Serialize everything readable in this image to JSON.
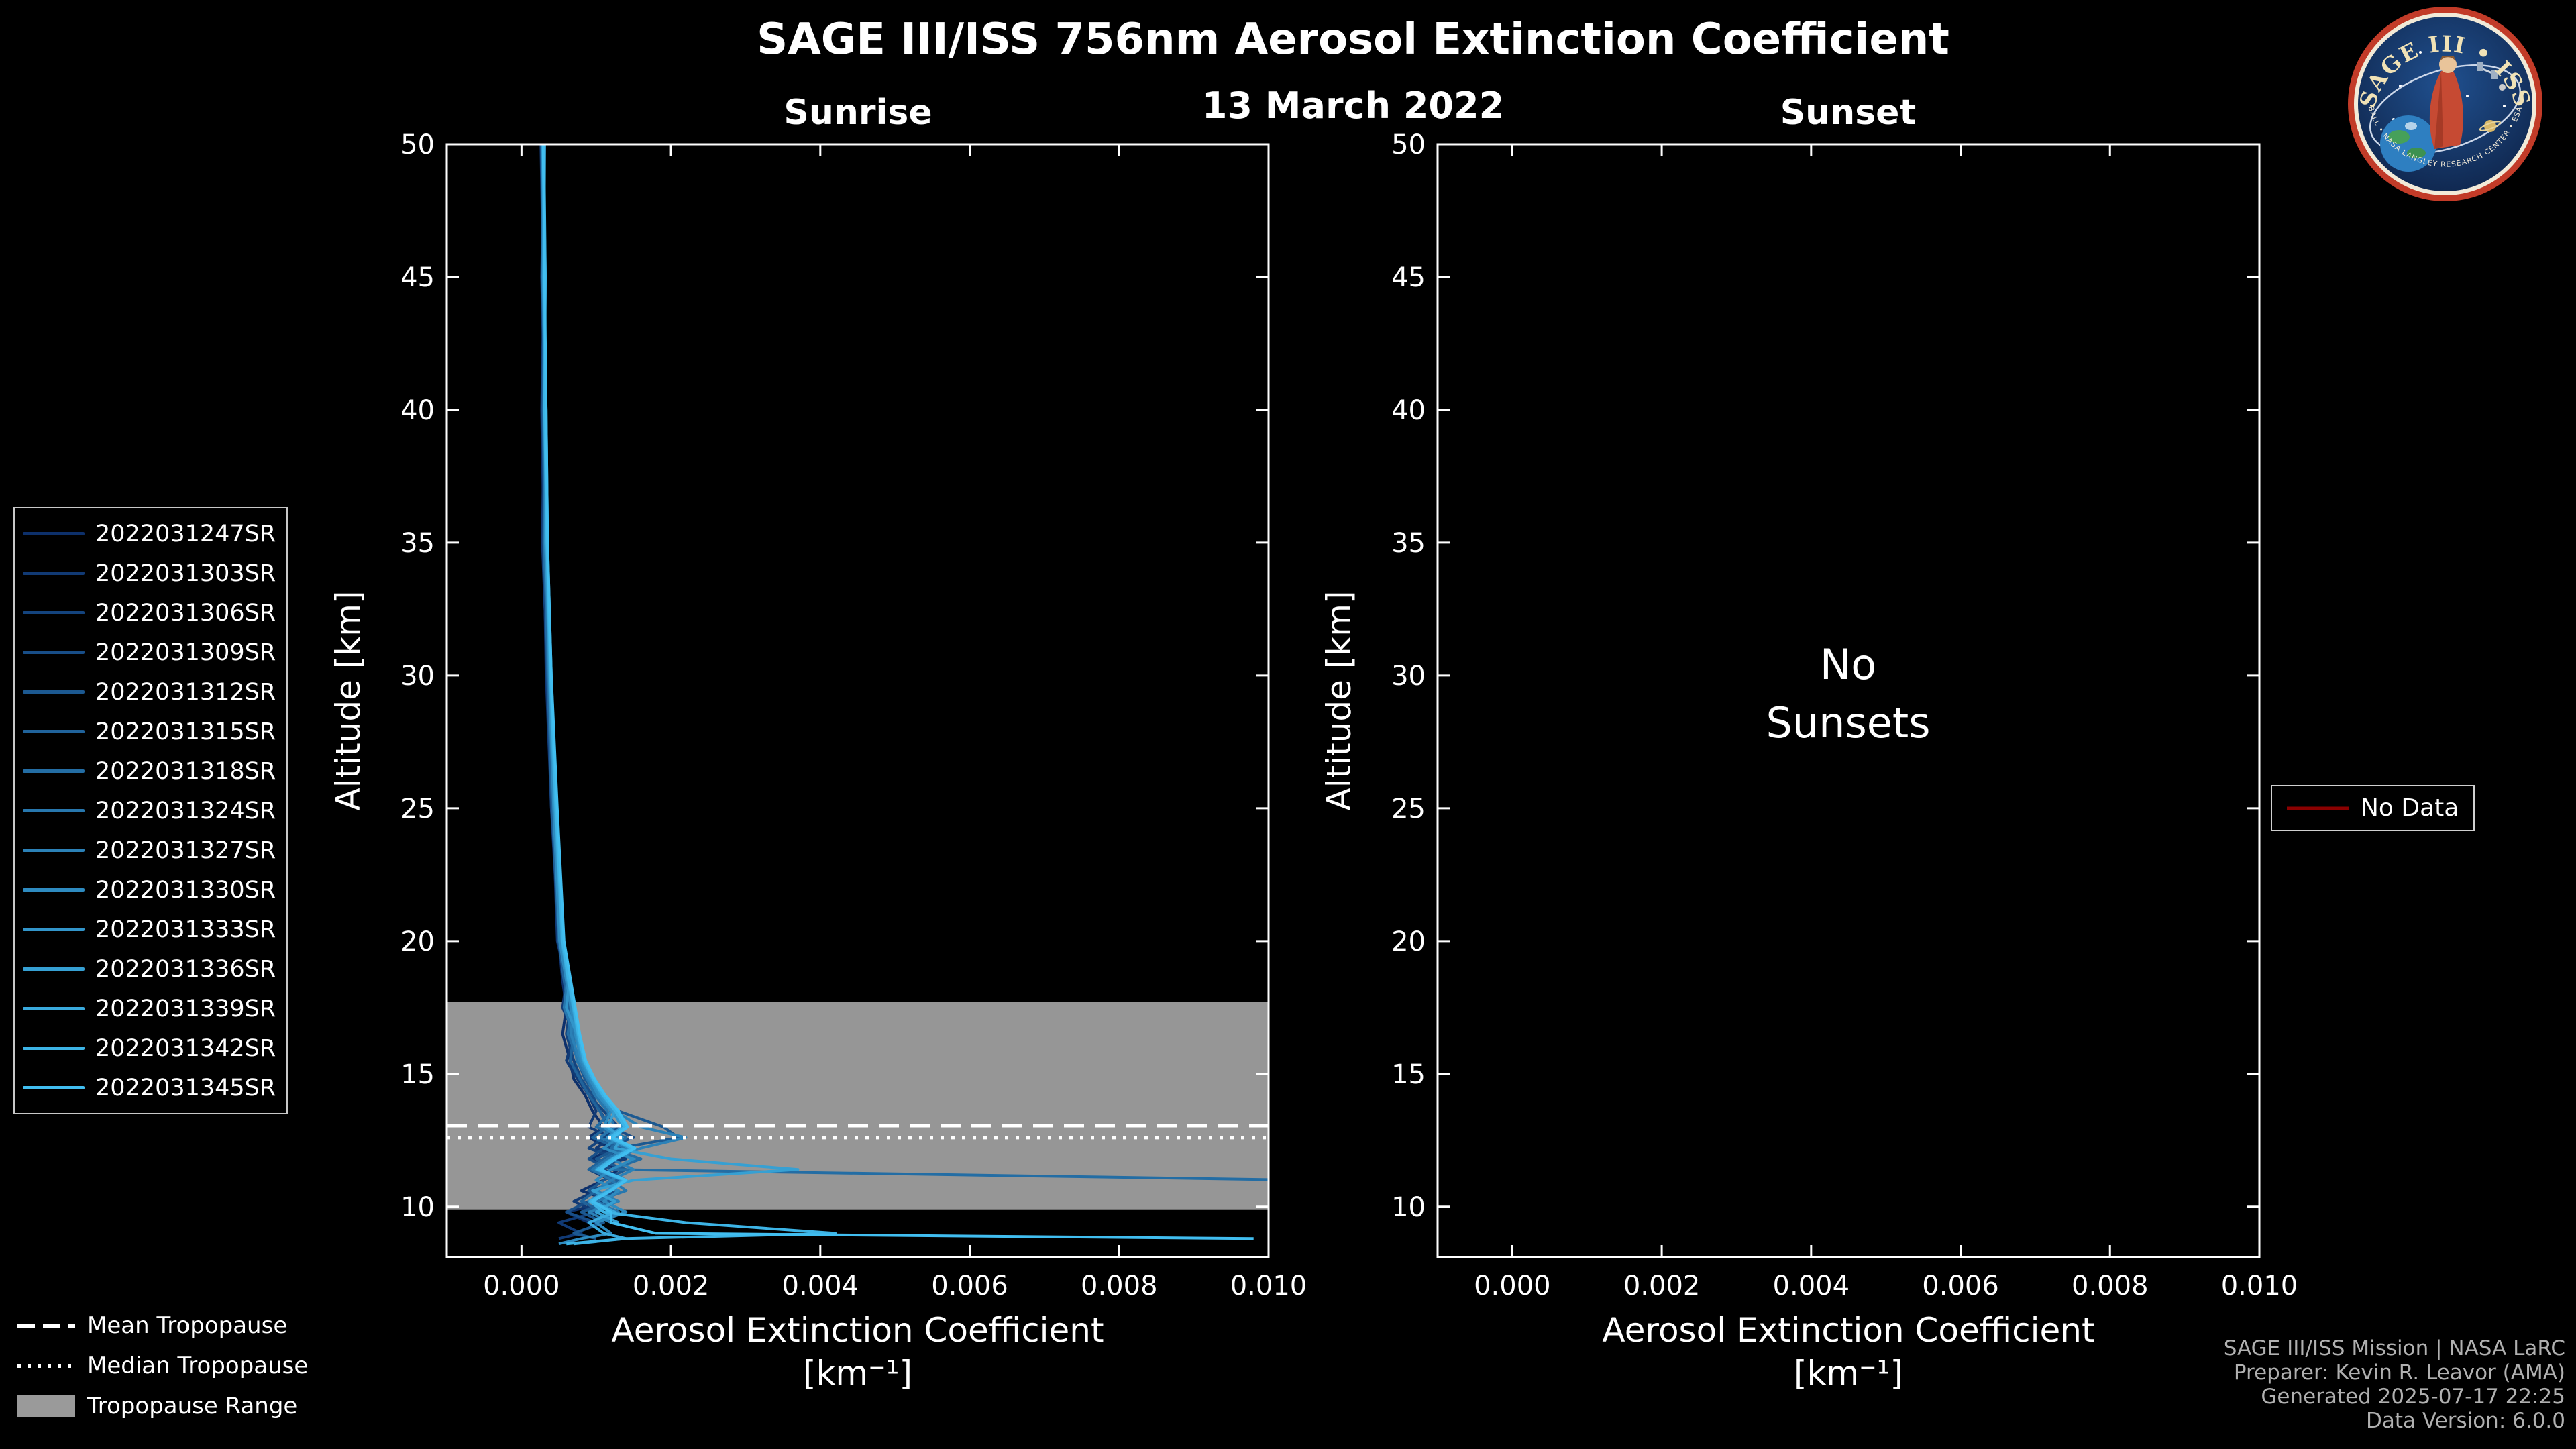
{
  "figure": {
    "title": "SAGE III/ISS 756nm Aerosol Extinction Coefficient",
    "date": "13 March 2022",
    "credits": {
      "line1": "SAGE III/ISS Mission | NASA LaRC",
      "line2": "Preparer: Kevin R. Leavor (AMA)",
      "line3": "Generated 2025-07-17 22:25",
      "line4": "Data Version: 6.0.0"
    }
  },
  "logo": {
    "name": "SAGE III • ISS",
    "subtitle": "BALL • NASA LANGLEY RESEARCH CENTER • ESA"
  },
  "legends": {
    "no_data": {
      "label": "No Data",
      "color": "#8b0000"
    },
    "tropopause_items": [
      {
        "label": "Mean Tropopause",
        "style": "dashed"
      },
      {
        "label": "Median Tropopause",
        "style": "dotted"
      },
      {
        "label": "Tropopause Range",
        "style": "patch"
      }
    ]
  },
  "chart_data": {
    "type": "line",
    "title": "SAGE III/ISS 756nm Aerosol Extinction Coefficient",
    "subtitle": "13 March 2022",
    "xlabel": "Aerosol Extinction Coefficient",
    "xlabel_units": "[km⁻¹]",
    "ylabel": "Altitude [km]",
    "xlim": [
      -0.001,
      0.01
    ],
    "ylim": [
      8.1,
      50
    ],
    "xticks": [
      0.0,
      0.002,
      0.004,
      0.006,
      0.008,
      0.01
    ],
    "yticks": [
      10,
      15,
      20,
      25,
      30,
      35,
      40,
      45,
      50
    ],
    "grid": false,
    "tropopause": {
      "mean_km": 13.05,
      "median_km": 12.6,
      "range_km": [
        9.9,
        17.7
      ],
      "band_color": "#969696"
    },
    "altitudes_km": [
      50,
      45,
      40,
      35,
      30,
      25,
      20,
      18.5,
      17.5,
      16.5,
      15.5,
      14.8,
      14.2,
      13.6,
      13,
      12.6,
      12.2,
      11.8,
      11.4,
      11,
      10.6,
      10.2,
      9.8,
      9.4,
      9,
      8.8,
      8.6
    ],
    "panels": [
      {
        "title": "Sunrise",
        "series": [
          {
            "name": "2022031247SR",
            "color": "#0d306b",
            "extinction": [
              0.00028,
              0.0003,
              0.00027,
              0.0003,
              0.00033,
              0.0004,
              0.0005,
              0.00055,
              0.0006,
              0.00055,
              0.00065,
              0.0007,
              0.00085,
              0.00095,
              0.0011,
              0.0009,
              0.0012,
              0.00095,
              0.0013,
              0.0011,
              0.0008,
              0.0012,
              0.0006,
              0.0009,
              null,
              null,
              null
            ]
          },
          {
            "name": "2022031303SR",
            "color": "#113a75",
            "extinction": [
              0.00026,
              0.00029,
              0.0003,
              0.00028,
              0.00035,
              0.00042,
              0.00048,
              0.0006,
              0.00055,
              0.0007,
              0.0006,
              0.00075,
              0.0009,
              0.001,
              0.0009,
              0.0012,
              0.001,
              0.0014,
              0.0009,
              0.0012,
              0.001,
              0.0007,
              0.001,
              0.0005,
              0.0008,
              0.0005,
              null
            ]
          },
          {
            "name": "2022031306SR",
            "color": "#14447e",
            "extinction": [
              0.0003,
              0.00027,
              0.00031,
              0.00029,
              0.00034,
              0.0004,
              0.00052,
              0.00058,
              0.00065,
              0.0006,
              0.0007,
              0.0008,
              0.0009,
              0.0011,
              0.0013,
              0.0011,
              0.0009,
              0.0013,
              0.0011,
              0.0014,
              0.0009,
              0.0011,
              0.0008,
              null,
              null,
              null,
              null
            ]
          },
          {
            "name": "2022031309SR",
            "color": "#184e88",
            "extinction": [
              0.00027,
              0.0003,
              0.00028,
              0.00032,
              0.00036,
              0.00044,
              0.0005,
              0.00062,
              0.00058,
              0.00072,
              0.00065,
              0.0008,
              0.00095,
              0.00105,
              0.0012,
              0.0015,
              0.0011,
              0.0009,
              0.0012,
              0.001,
              0.0013,
              0.0009,
              0.0006,
              0.001,
              null,
              null,
              null
            ]
          },
          {
            "name": "2022031312SR",
            "color": "#1c5991",
            "extinction": [
              0.00029,
              0.00031,
              0.0003,
              0.00033,
              0.00037,
              0.00042,
              0.00055,
              0.0006,
              0.0007,
              0.00065,
              0.00075,
              0.00085,
              0.001,
              0.0013,
              0.0019,
              0.0021,
              0.0013,
              0.001,
              0.0014,
              0.0011,
              0.0009,
              0.0012,
              0.0008,
              0.0011,
              0.0007,
              0.001,
              null
            ]
          },
          {
            "name": "2022031315SR",
            "color": "#20639b",
            "extinction": [
              0.00028,
              0.0003,
              0.00029,
              0.00031,
              0.00035,
              0.00041,
              0.0005,
              0.00057,
              0.00063,
              0.0007,
              0.00065,
              0.00078,
              0.0009,
              0.00105,
              0.00115,
              0.00095,
              0.0013,
              0.0011,
              0.0009,
              0.0013,
              0.001,
              0.0008,
              0.0011,
              null,
              null,
              null,
              null
            ]
          },
          {
            "name": "2022031318SR",
            "color": "#236da4",
            "extinction": [
              0.00027,
              0.00029,
              0.00031,
              0.0003,
              0.00036,
              0.00043,
              0.00052,
              0.0006,
              0.00068,
              0.00062,
              0.00076,
              0.0009,
              0.001,
              0.0012,
              0.001,
              0.0014,
              0.0012,
              0.0016,
              0.0012,
              0.0105,
              null,
              null,
              null,
              null,
              null,
              null,
              null
            ]
          },
          {
            "name": "2022031324SR",
            "color": "#2777ae",
            "extinction": [
              0.0003,
              0.00028,
              0.00032,
              0.00031,
              0.00038,
              0.00045,
              0.00053,
              0.00061,
              0.00057,
              0.00069,
              0.00074,
              0.00088,
              0.00098,
              0.00115,
              0.00125,
              0.00105,
              0.0014,
              0.00115,
              0.00095,
              0.0012,
              0.0014,
              0.001,
              0.0013,
              0.0009,
              null,
              null,
              null
            ]
          },
          {
            "name": "2022031327SR",
            "color": "#2b81b7",
            "extinction": [
              0.00029,
              0.00032,
              0.0003,
              0.00034,
              0.00038,
              0.00044,
              0.00054,
              0.00063,
              0.0007,
              0.00066,
              0.00078,
              0.0009,
              0.00105,
              0.00125,
              0.0016,
              0.0022,
              0.0016,
              0.0012,
              0.0015,
              0.0012,
              0.001,
              0.0013,
              0.0009,
              0.0012,
              null,
              null,
              null
            ]
          },
          {
            "name": "2022031330SR",
            "color": "#2e8bc0",
            "extinction": [
              0.00028,
              0.0003,
              0.00031,
              0.00033,
              0.00037,
              0.00043,
              0.00051,
              0.0006,
              0.00066,
              0.00072,
              0.0008,
              0.00092,
              0.00102,
              0.0012,
              0.0011,
              0.0013,
              0.0011,
              0.0015,
              0.0012,
              0.001,
              0.0013,
              0.0011,
              0.0014,
              0.001,
              0.0012,
              0.0008,
              0.0005
            ]
          },
          {
            "name": "2022031333SR",
            "color": "#3295ca",
            "extinction": [
              0.0003,
              0.00029,
              0.00033,
              0.00032,
              0.00039,
              0.00046,
              0.00055,
              0.00064,
              0.0006,
              0.00074,
              0.00082,
              0.00094,
              0.00106,
              0.00122,
              0.00135,
              0.00115,
              0.00145,
              0.0012,
              0.001,
              0.00135,
              0.00115,
              0.0009,
              0.0012,
              null,
              null,
              null,
              null
            ]
          },
          {
            "name": "2022031336SR",
            "color": "#36a0d3",
            "extinction": [
              0.00029,
              0.00031,
              0.00032,
              0.00034,
              0.00038,
              0.00045,
              0.00054,
              0.00062,
              0.00069,
              0.00075,
              0.00083,
              0.00095,
              0.00108,
              0.00125,
              0.00115,
              0.00135,
              0.00125,
              0.002,
              0.0037,
              0.0015,
              0.00095,
              0.00125,
              0.001,
              0.0013,
              null,
              null,
              null
            ]
          },
          {
            "name": "2022031339SR",
            "color": "#3aaadd",
            "extinction": [
              0.00031,
              0.0003,
              0.00033,
              0.00035,
              0.0004,
              0.00047,
              0.00056,
              0.00065,
              0.00071,
              0.00077,
              0.00085,
              0.00097,
              0.0011,
              0.00128,
              0.0014,
              0.0012,
              0.0015,
              0.00125,
              0.00105,
              0.0014,
              0.0012,
              0.00095,
              0.00125,
              0.0009,
              0.0011,
              0.0014,
              0.0007
            ]
          },
          {
            "name": "2022031342SR",
            "color": "#3db4e6",
            "extinction": [
              0.0003,
              0.00032,
              0.00031,
              0.00034,
              0.00039,
              0.00046,
              0.00055,
              0.00063,
              0.0007,
              0.00076,
              0.00084,
              0.00096,
              0.00109,
              0.00126,
              0.00138,
              0.00118,
              0.00148,
              0.00122,
              0.00102,
              0.00138,
              0.00118,
              0.00092,
              0.0011,
              0.0022,
              0.0042,
              0.0014,
              0.0006
            ]
          },
          {
            "name": "2022031345SR",
            "color": "#41bef0",
            "extinction": [
              0.00029,
              0.00031,
              0.00033,
              0.00035,
              0.0004,
              0.00048,
              0.00057,
              0.00066,
              0.00072,
              0.00078,
              0.00086,
              0.00098,
              0.00112,
              0.0013,
              0.00142,
              0.00122,
              0.00152,
              0.00126,
              0.00106,
              0.0014,
              0.0012,
              0.00095,
              0.0012,
              0.0012,
              0.0018,
              0.0098,
              null
            ]
          }
        ]
      },
      {
        "title": "Sunset",
        "series": [],
        "annotation": "No\nSunsets"
      }
    ]
  }
}
